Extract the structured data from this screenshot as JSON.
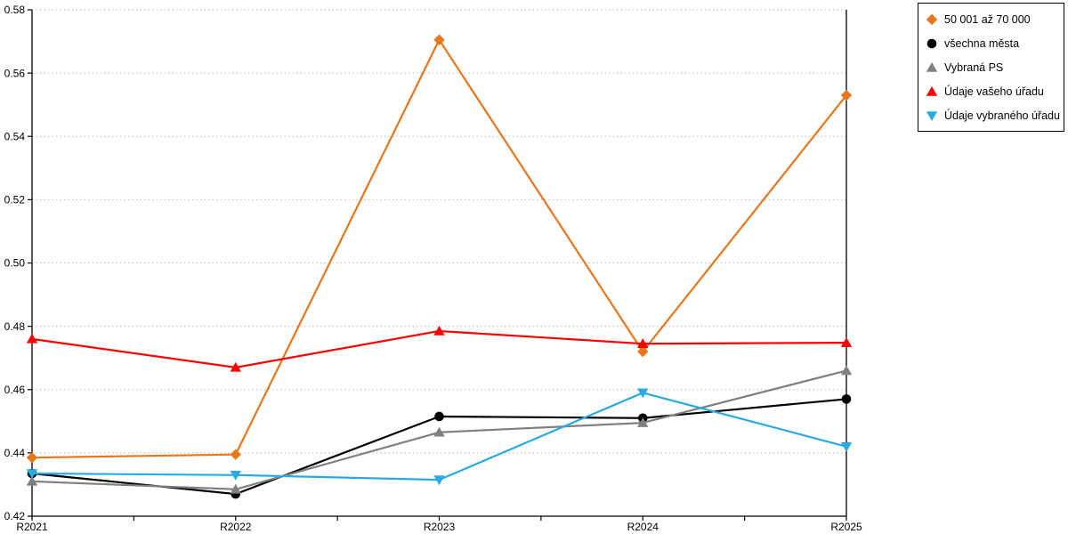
{
  "chart_data": {
    "type": "line",
    "title": "",
    "xlabel": "",
    "ylabel": "",
    "categories": [
      "R2021",
      "R2022",
      "R2023",
      "R2024",
      "R2025"
    ],
    "series": [
      {
        "name": "50 001 až 70 000",
        "marker": "diamond",
        "color": "#E8761B",
        "values": [
          0.4385,
          0.4395,
          0.5705,
          0.472,
          0.553
        ]
      },
      {
        "name": "všechna města",
        "marker": "circle",
        "color": "#000000",
        "values": [
          0.4335,
          0.427,
          0.4515,
          0.451,
          0.457
        ]
      },
      {
        "name": "Vybraná PS",
        "marker": "triangle-up",
        "color": "#808080",
        "values": [
          0.431,
          0.4285,
          0.4465,
          0.4495,
          0.466
        ]
      },
      {
        "name": "Údaje vašeho úřadu",
        "marker": "triangle-up",
        "color": "#FF0000",
        "values": [
          0.476,
          0.467,
          0.4785,
          0.4745,
          0.4748
        ]
      },
      {
        "name": "Údaje vybraného úřadu",
        "marker": "triangle-down",
        "color": "#29ABE2",
        "values": [
          0.4335,
          0.433,
          0.4315,
          0.459,
          0.442
        ]
      }
    ],
    "ylim": [
      0.42,
      0.58
    ],
    "ytick_step": 0.02,
    "ytick_labels": [
      "0.42",
      "0.44",
      "0.46",
      "0.48",
      "0.50",
      "0.52",
      "0.54",
      "0.56",
      "0.58"
    ],
    "grid": "horizontal-dotted",
    "grid_color": "#C6C6C6",
    "axis_color": "#000000",
    "background_color": "#FFFFFF",
    "legend_position": "top-right"
  }
}
